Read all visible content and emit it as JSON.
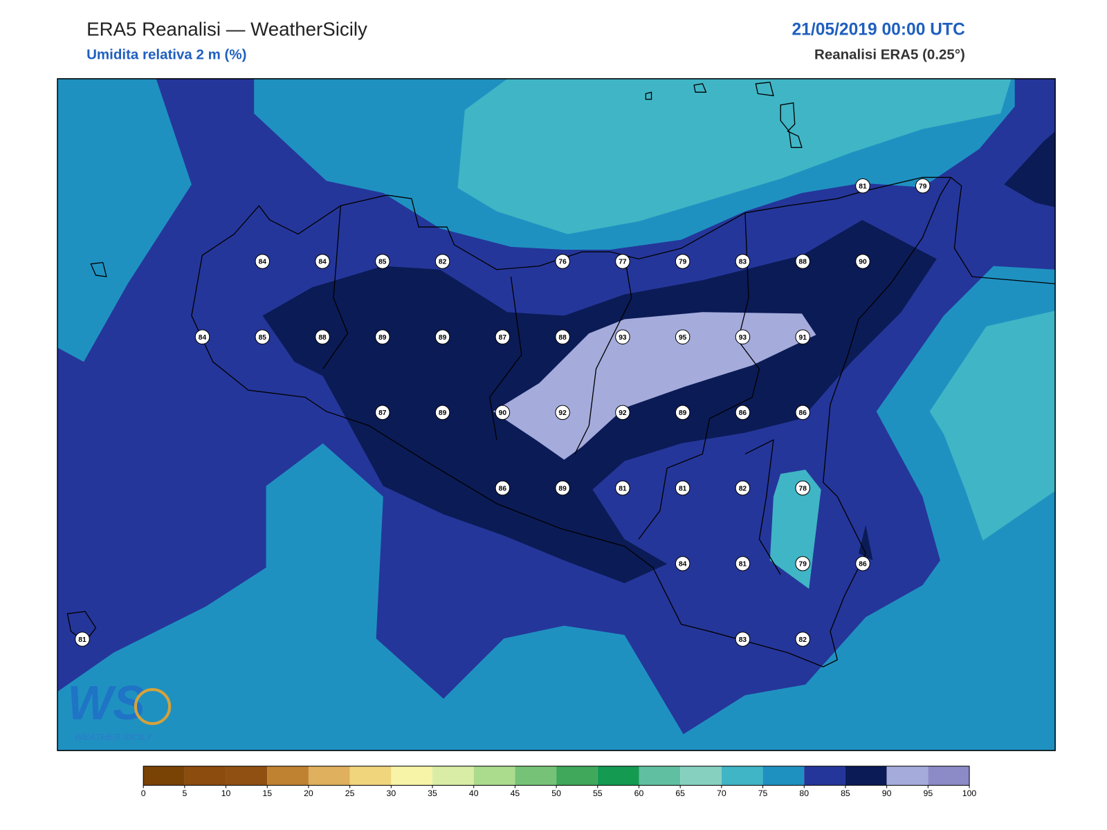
{
  "header": {
    "title": "ERA5 Reanalisi — WeatherSicily",
    "subtitle": "Umidita relativa 2 m (%)",
    "date": "21/05/2019 00:00 UTC",
    "source": "Reanalisi ERA5 (0.25°)"
  },
  "stations": [
    81,
    79,
    84,
    84,
    85,
    82,
    76,
    77,
    79,
    83,
    88,
    90,
    84,
    85,
    88,
    89,
    89,
    87,
    88,
    93,
    95,
    93,
    91,
    87,
    89,
    90,
    92,
    92,
    89,
    86,
    86,
    86,
    89,
    81,
    81,
    82,
    78,
    84,
    81,
    79,
    86,
    81,
    83,
    82
  ],
  "colorbar": {
    "ticks": [
      0,
      5,
      10,
      15,
      20,
      25,
      30,
      35,
      40,
      45,
      50,
      55,
      60,
      65,
      70,
      75,
      80,
      85,
      90,
      95,
      100
    ],
    "colors": [
      "#7a4306",
      "#8b4c0e",
      "#8f5012",
      "#bf8230",
      "#dfb05d",
      "#f0d57c",
      "#f7f4a8",
      "#d9eda6",
      "#abdc8e",
      "#76c377",
      "#3fa85b",
      "#159a52",
      "#60bfa0",
      "#86d0c0",
      "#40b5c5",
      "#1f91c1",
      "#25369a",
      "#0b1b56",
      "#a5acdc",
      "#8c8bc8"
    ]
  },
  "logo": {
    "mark": "WS",
    "text": "WEATHER SICILY"
  }
}
